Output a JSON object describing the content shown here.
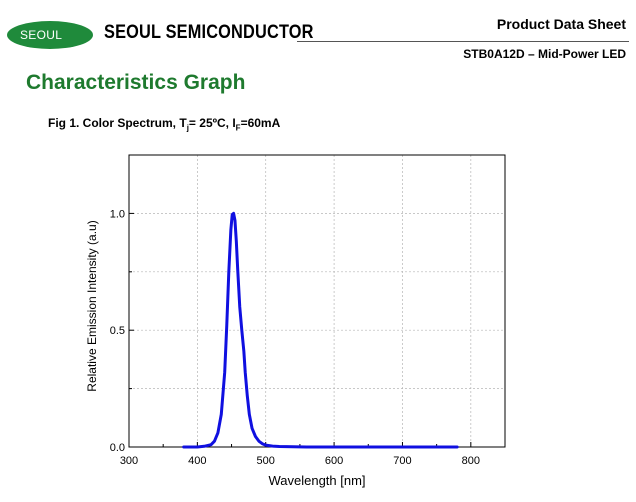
{
  "header": {
    "logo_text": "SEOUL",
    "brand_name": "SEOUL SEMICONDUCTOR",
    "doc_type": "Product Data Sheet",
    "part_name": "STB0A12D – Mid-Power LED"
  },
  "section": {
    "title": "Characteristics Graph"
  },
  "figure": {
    "caption_prefix": "Fig 1. Color Spectrum, T",
    "caption_tj_sub": "j",
    "caption_tj_value": "= 25ºC,  I",
    "caption_if_sub": "F",
    "caption_if_value": "=60mA"
  },
  "chart_data": {
    "type": "line",
    "xlabel": "Wavelength [nm]",
    "ylabel": "Relative Emission Intensity (a.u)",
    "xlim": [
      300,
      850
    ],
    "ylim": [
      0,
      1.25
    ],
    "x_ticks": [
      300,
      400,
      500,
      600,
      700,
      800
    ],
    "y_ticks": [
      0.0,
      0.5,
      1.0
    ],
    "y_tick_labels": [
      "0.0",
      "0.5",
      "1.0"
    ],
    "grid": true,
    "line_color": "#1010e0",
    "series": [
      {
        "x": [
          380,
          400,
          410,
          420,
          425,
          430,
          435,
          440,
          443,
          446,
          449,
          451,
          453,
          455,
          457,
          459,
          462,
          465,
          468,
          470,
          473,
          476,
          480,
          485,
          490,
          495,
          500,
          510,
          520,
          540,
          560,
          600,
          650,
          700,
          750,
          780
        ],
        "y": [
          0.0,
          0.0,
          0.003,
          0.01,
          0.025,
          0.06,
          0.14,
          0.32,
          0.52,
          0.75,
          0.93,
          0.995,
          1.0,
          0.97,
          0.88,
          0.76,
          0.6,
          0.5,
          0.41,
          0.32,
          0.22,
          0.14,
          0.08,
          0.045,
          0.025,
          0.014,
          0.008,
          0.004,
          0.002,
          0.001,
          0.0,
          0.0,
          0.0,
          0.0,
          0.0,
          0.0
        ]
      }
    ]
  }
}
